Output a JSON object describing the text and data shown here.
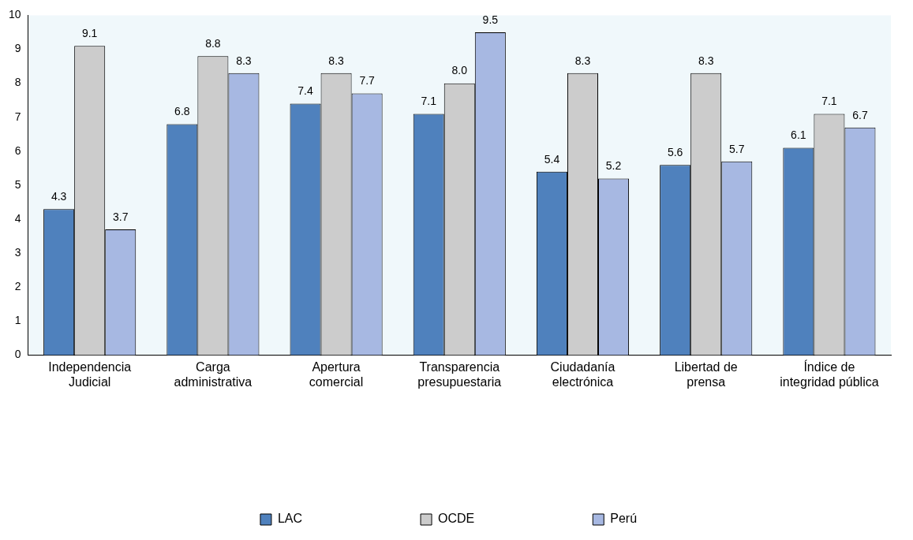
{
  "chart_data": {
    "type": "bar",
    "categories": [
      "Independencia\nJudicial",
      "Carga\nadministrativa",
      "Apertura\ncomercial",
      "Transparencia\npresupuestaria",
      "Ciudadanía\nelectrónica",
      "Libertad de\nprensa",
      "Índice de\nintegridad pública"
    ],
    "series": [
      {
        "name": "LAC",
        "color": "#4f81bd",
        "values": [
          4.3,
          6.8,
          7.4,
          7.1,
          5.4,
          5.6,
          6.1
        ],
        "value_labels": [
          "4.3",
          "6.8",
          "7.4",
          "7.1",
          "5.4",
          "5.6",
          "6.1"
        ]
      },
      {
        "name": "OCDE",
        "color": "#cccccc",
        "values": [
          9.1,
          8.8,
          8.3,
          8.0,
          8.3,
          8.3,
          7.1
        ],
        "value_labels": [
          "9.1",
          "8.8",
          "8.3",
          "8.0",
          "8.3",
          "8.3",
          "7.1"
        ]
      },
      {
        "name": "Perú",
        "color": "#a7b8e2",
        "values": [
          3.7,
          8.3,
          7.7,
          9.5,
          5.2,
          5.7,
          6.7
        ],
        "value_labels": [
          "3.7",
          "8.3",
          "7.7",
          "9.5",
          "5.2",
          "5.7",
          "6.7"
        ]
      }
    ],
    "ylim": [
      0,
      10
    ],
    "yticks": [
      0,
      1,
      2,
      3,
      4,
      5,
      6,
      7,
      8,
      9,
      10
    ],
    "grid": false,
    "legend": "bottom"
  }
}
